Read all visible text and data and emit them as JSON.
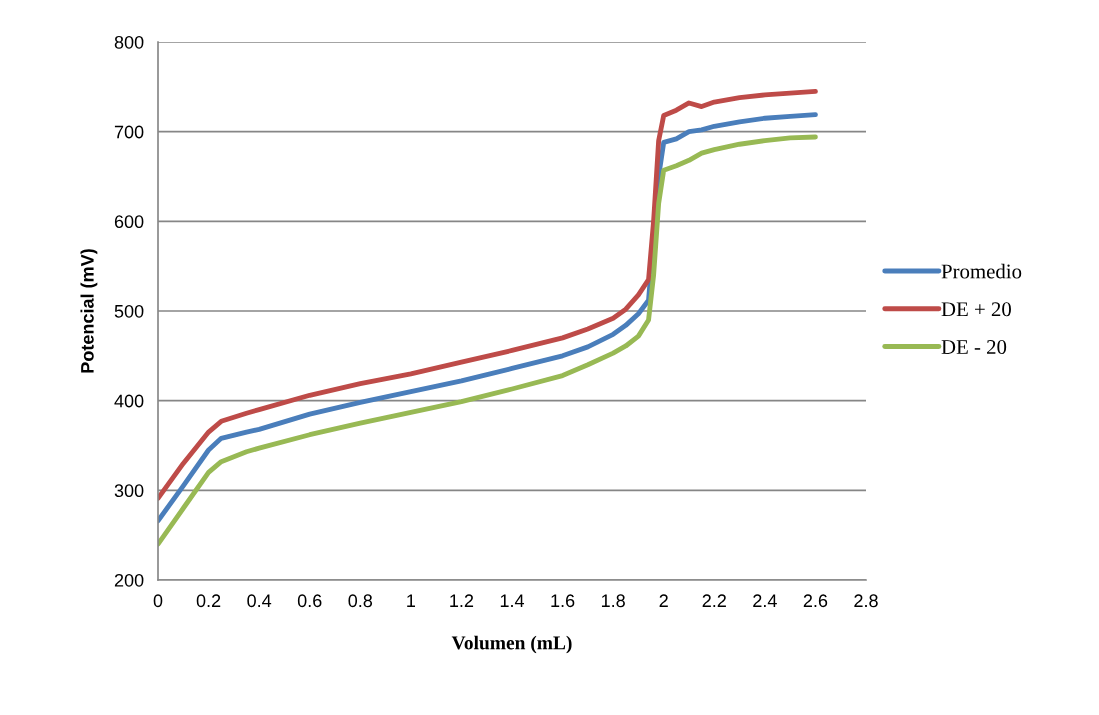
{
  "chart_data": {
    "type": "line",
    "xlabel": "Volumen (mL)",
    "ylabel": "Potencial (mV)",
    "x": [
      0,
      0.1,
      0.2,
      0.25,
      0.35,
      0.4,
      0.6,
      0.8,
      1.0,
      1.2,
      1.4,
      1.6,
      1.7,
      1.8,
      1.85,
      1.9,
      1.94,
      1.96,
      1.98,
      2.0,
      2.05,
      2.1,
      2.15,
      2.2,
      2.3,
      2.4,
      2.5,
      2.6
    ],
    "series": [
      {
        "name": "Promedio",
        "color": "#4a7ebb",
        "x": [
          0,
          0.1,
          0.2,
          0.25,
          0.35,
          0.4,
          0.6,
          0.8,
          1.0,
          1.2,
          1.4,
          1.6,
          1.7,
          1.8,
          1.85,
          1.9,
          1.94,
          1.98,
          2.0,
          2.05,
          2.1,
          2.15,
          2.2,
          2.3,
          2.4,
          2.5,
          2.6
        ],
        "values": [
          266,
          305,
          345,
          358,
          365,
          368,
          385,
          398,
          410,
          422,
          436,
          450,
          460,
          474,
          484,
          497,
          512,
          650,
          688,
          692,
          700,
          702,
          706,
          711,
          715,
          717,
          719
        ]
      },
      {
        "name": "DE + 20",
        "color": "#be4b48",
        "values": [
          291,
          330,
          365,
          377,
          386,
          390,
          406,
          419,
          430,
          443,
          456,
          470,
          480,
          492,
          502,
          518,
          535,
          600,
          690,
          718,
          724,
          732,
          728,
          733,
          738,
          741,
          743,
          745
        ]
      },
      {
        "name": "DE - 20",
        "color": "#98b954",
        "values": [
          240,
          280,
          320,
          332,
          343,
          347,
          362,
          375,
          387,
          399,
          413,
          428,
          440,
          453,
          461,
          472,
          490,
          540,
          620,
          657,
          662,
          668,
          676,
          680,
          686,
          690,
          693,
          694
        ]
      }
    ],
    "xlim": [
      0,
      2.8
    ],
    "xticks": [
      0,
      0.2,
      0.4,
      0.6,
      0.8,
      1,
      1.2,
      1.4,
      1.6,
      1.8,
      2,
      2.2,
      2.4,
      2.6,
      2.8
    ],
    "ylim": [
      200,
      800
    ],
    "yticks": [
      200,
      300,
      400,
      500,
      600,
      700,
      800
    ],
    "grid": "y",
    "legend": "right",
    "marker": "none",
    "line_style": "solid"
  }
}
